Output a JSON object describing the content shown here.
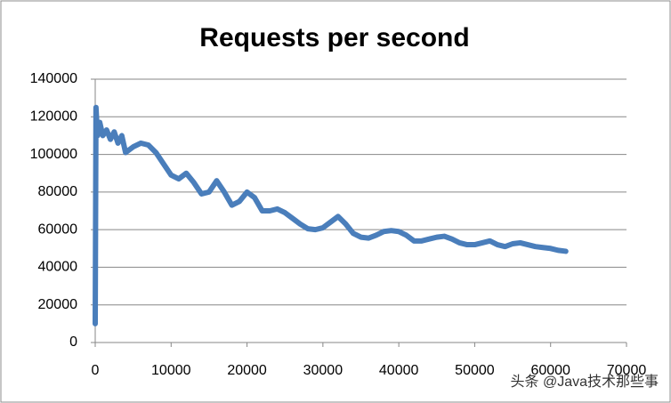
{
  "chart_data": {
    "type": "line",
    "title": "Requests per second",
    "x": [
      0,
      100,
      300,
      600,
      1000,
      1500,
      2000,
      2500,
      3000,
      3500,
      4000,
      5000,
      6000,
      7000,
      8000,
      9000,
      10000,
      11000,
      12000,
      13000,
      14000,
      15000,
      16000,
      17000,
      18000,
      19000,
      20000,
      21000,
      22000,
      23000,
      24000,
      25000,
      26000,
      27000,
      28000,
      29000,
      30000,
      31000,
      32000,
      33000,
      34000,
      35000,
      36000,
      37000,
      38000,
      39000,
      40000,
      41000,
      42000,
      43000,
      44000,
      45000,
      46000,
      47000,
      48000,
      49000,
      50000,
      51000,
      52000,
      53000,
      54000,
      55000,
      56000,
      57000,
      58000,
      59000,
      60000,
      61000,
      62000
    ],
    "series": [
      {
        "color": "#4a7ebb",
        "values": [
          10000,
          125000,
          110000,
          117000,
          110000,
          113000,
          108000,
          112000,
          106000,
          110000,
          101000,
          104000,
          106000,
          105000,
          101000,
          95000,
          89000,
          87000,
          90000,
          85000,
          79000,
          80000,
          86000,
          80000,
          73000,
          75000,
          80000,
          77000,
          70000,
          70000,
          71000,
          69000,
          66000,
          63000,
          60500,
          60000,
          61000,
          64000,
          67000,
          63000,
          58000,
          56000,
          55500,
          57000,
          59000,
          59500,
          59000,
          57000,
          54000,
          54000,
          55000,
          56000,
          56500,
          55000,
          53000,
          52000,
          52000,
          53000,
          54000,
          52000,
          51000,
          52500,
          53000,
          52000,
          51000,
          50500,
          50000,
          49000,
          48500
        ]
      }
    ],
    "xlim": [
      0,
      70000
    ],
    "xticks": [
      0,
      10000,
      20000,
      30000,
      40000,
      50000,
      60000,
      70000
    ],
    "ylim": [
      0,
      140000
    ],
    "yticks": [
      0,
      20000,
      40000,
      60000,
      80000,
      100000,
      120000,
      140000
    ],
    "grid": true
  },
  "watermark": "头条 @Java技术那些事"
}
